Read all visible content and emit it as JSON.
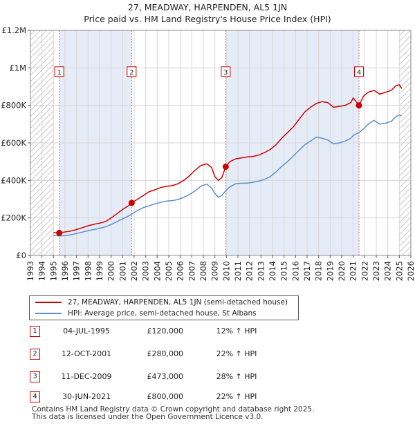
{
  "title": {
    "line1": "27, MEADWAY, HARPENDEN, AL5 1JN",
    "line2": "Price paid vs. HM Land Registry's House Price Index (HPI)"
  },
  "chart_data": {
    "type": "line",
    "xlim": [
      1993,
      2026
    ],
    "ylim": [
      0,
      1200000
    ],
    "x_ticks": [
      "1993",
      "1994",
      "1995",
      "1996",
      "1997",
      "1998",
      "1999",
      "2000",
      "2001",
      "2002",
      "2003",
      "2004",
      "2005",
      "2006",
      "2007",
      "2008",
      "2009",
      "2010",
      "2011",
      "2012",
      "2013",
      "2014",
      "2015",
      "2016",
      "2017",
      "2018",
      "2019",
      "2020",
      "2021",
      "2022",
      "2023",
      "2024",
      "2025",
      "2026"
    ],
    "y_ticks": [
      {
        "value": 0,
        "label": "£0"
      },
      {
        "value": 200000,
        "label": "£200K"
      },
      {
        "value": 400000,
        "label": "£400K"
      },
      {
        "value": 600000,
        "label": "£600K"
      },
      {
        "value": 800000,
        "label": "£800K"
      },
      {
        "value": 1000000,
        "label": "£1M"
      },
      {
        "value": 1200000,
        "label": "£1.2M"
      }
    ],
    "grid": true,
    "hatched_ranges": [
      [
        1993,
        1995.0
      ],
      [
        2025.0,
        2026
      ]
    ],
    "shaded_ranges": [
      [
        1995.5,
        2001.78
      ],
      [
        2009.94,
        2021.5
      ]
    ],
    "series": [
      {
        "name": "27, MEADWAY, HARPENDEN, AL5 1JN (semi-detached house)",
        "color": "#cc0000",
        "points": [
          [
            1995.0,
            122000
          ],
          [
            1995.5,
            120000
          ],
          [
            1996.0,
            125000
          ],
          [
            1996.5,
            130000
          ],
          [
            1997.0,
            138000
          ],
          [
            1997.5,
            148000
          ],
          [
            1998.0,
            158000
          ],
          [
            1998.5,
            166000
          ],
          [
            1999.0,
            172000
          ],
          [
            1999.5,
            180000
          ],
          [
            2000.0,
            200000
          ],
          [
            2000.5,
            222000
          ],
          [
            2001.0,
            245000
          ],
          [
            2001.5,
            265000
          ],
          [
            2001.78,
            280000
          ],
          [
            2002.3,
            300000
          ],
          [
            2002.8,
            320000
          ],
          [
            2003.3,
            340000
          ],
          [
            2003.8,
            350000
          ],
          [
            2004.3,
            362000
          ],
          [
            2004.8,
            368000
          ],
          [
            2005.3,
            372000
          ],
          [
            2005.8,
            382000
          ],
          [
            2006.3,
            400000
          ],
          [
            2006.8,
            425000
          ],
          [
            2007.3,
            455000
          ],
          [
            2007.8,
            480000
          ],
          [
            2008.3,
            488000
          ],
          [
            2008.7,
            470000
          ],
          [
            2009.0,
            420000
          ],
          [
            2009.3,
            400000
          ],
          [
            2009.6,
            415000
          ],
          [
            2009.94,
            473000
          ],
          [
            2010.3,
            500000
          ],
          [
            2010.8,
            515000
          ],
          [
            2011.3,
            520000
          ],
          [
            2011.8,
            525000
          ],
          [
            2012.3,
            528000
          ],
          [
            2012.8,
            535000
          ],
          [
            2013.3,
            548000
          ],
          [
            2013.8,
            565000
          ],
          [
            2014.3,
            590000
          ],
          [
            2014.8,
            625000
          ],
          [
            2015.3,
            655000
          ],
          [
            2015.8,
            685000
          ],
          [
            2016.3,
            725000
          ],
          [
            2016.8,
            765000
          ],
          [
            2017.3,
            790000
          ],
          [
            2017.8,
            810000
          ],
          [
            2018.3,
            820000
          ],
          [
            2018.8,
            815000
          ],
          [
            2019.3,
            790000
          ],
          [
            2019.8,
            795000
          ],
          [
            2020.3,
            800000
          ],
          [
            2020.8,
            815000
          ],
          [
            2021.0,
            840000
          ],
          [
            2021.5,
            800000
          ],
          [
            2021.9,
            850000
          ],
          [
            2022.3,
            870000
          ],
          [
            2022.8,
            880000
          ],
          [
            2023.3,
            860000
          ],
          [
            2023.8,
            870000
          ],
          [
            2024.3,
            880000
          ],
          [
            2024.7,
            905000
          ],
          [
            2025.0,
            910000
          ],
          [
            2025.2,
            890000
          ]
        ]
      },
      {
        "name": "HPI: Average price, semi-detached house, St Albans",
        "color": "#5b8fc7",
        "points": [
          [
            1995.0,
            107000
          ],
          [
            1995.5,
            104000
          ],
          [
            1996.0,
            106000
          ],
          [
            1996.5,
            110000
          ],
          [
            1997.0,
            117000
          ],
          [
            1997.5,
            124000
          ],
          [
            1998.0,
            132000
          ],
          [
            1998.5,
            138000
          ],
          [
            1999.0,
            145000
          ],
          [
            1999.5,
            152000
          ],
          [
            2000.0,
            165000
          ],
          [
            2000.5,
            180000
          ],
          [
            2001.0,
            195000
          ],
          [
            2001.5,
            210000
          ],
          [
            2001.78,
            220000
          ],
          [
            2002.3,
            240000
          ],
          [
            2002.8,
            255000
          ],
          [
            2003.3,
            265000
          ],
          [
            2003.8,
            275000
          ],
          [
            2004.3,
            283000
          ],
          [
            2004.8,
            290000
          ],
          [
            2005.3,
            292000
          ],
          [
            2005.8,
            298000
          ],
          [
            2006.3,
            310000
          ],
          [
            2006.8,
            325000
          ],
          [
            2007.3,
            345000
          ],
          [
            2007.8,
            370000
          ],
          [
            2008.3,
            380000
          ],
          [
            2008.7,
            360000
          ],
          [
            2009.0,
            330000
          ],
          [
            2009.3,
            310000
          ],
          [
            2009.6,
            320000
          ],
          [
            2009.94,
            345000
          ],
          [
            2010.3,
            365000
          ],
          [
            2010.8,
            382000
          ],
          [
            2011.3,
            385000
          ],
          [
            2011.8,
            385000
          ],
          [
            2012.3,
            390000
          ],
          [
            2012.8,
            396000
          ],
          [
            2013.3,
            405000
          ],
          [
            2013.8,
            420000
          ],
          [
            2014.3,
            445000
          ],
          [
            2014.8,
            475000
          ],
          [
            2015.3,
            500000
          ],
          [
            2015.8,
            530000
          ],
          [
            2016.3,
            560000
          ],
          [
            2016.8,
            590000
          ],
          [
            2017.3,
            610000
          ],
          [
            2017.8,
            630000
          ],
          [
            2018.3,
            625000
          ],
          [
            2018.8,
            615000
          ],
          [
            2019.3,
            595000
          ],
          [
            2019.8,
            600000
          ],
          [
            2020.3,
            610000
          ],
          [
            2020.8,
            625000
          ],
          [
            2021.0,
            640000
          ],
          [
            2021.5,
            655000
          ],
          [
            2021.9,
            675000
          ],
          [
            2022.3,
            700000
          ],
          [
            2022.8,
            720000
          ],
          [
            2023.3,
            700000
          ],
          [
            2023.8,
            705000
          ],
          [
            2024.3,
            715000
          ],
          [
            2024.7,
            740000
          ],
          [
            2025.0,
            750000
          ],
          [
            2025.2,
            745000
          ]
        ]
      }
    ],
    "sales": [
      {
        "label": "1",
        "x": 1995.5,
        "y": 120000
      },
      {
        "label": "2",
        "x": 2001.78,
        "y": 280000
      },
      {
        "label": "3",
        "x": 2009.94,
        "y": 473000
      },
      {
        "label": "4",
        "x": 2021.5,
        "y": 800000
      }
    ],
    "marker_label_value": 980000
  },
  "legend": {
    "items": [
      {
        "label": "27, MEADWAY, HARPENDEN, AL5 1JN (semi-detached house)",
        "color": "#cc0000"
      },
      {
        "label": "HPI: Average price, semi-detached house, St Albans",
        "color": "#5b8fc7"
      }
    ]
  },
  "sales_table": [
    {
      "num": "1",
      "date": "04-JUL-1995",
      "price": "£120,000",
      "hpi": "12% ↑ HPI"
    },
    {
      "num": "2",
      "date": "12-OCT-2001",
      "price": "£280,000",
      "hpi": "22% ↑ HPI"
    },
    {
      "num": "3",
      "date": "11-DEC-2009",
      "price": "£473,000",
      "hpi": "28% ↑ HPI"
    },
    {
      "num": "4",
      "date": "30-JUN-2021",
      "price": "£800,000",
      "hpi": "22% ↑ HPI"
    }
  ],
  "footer": {
    "line1": "Contains HM Land Registry data © Crown copyright and database right 2025.",
    "line2": "This data is licensed under the Open Government Licence v3.0."
  }
}
